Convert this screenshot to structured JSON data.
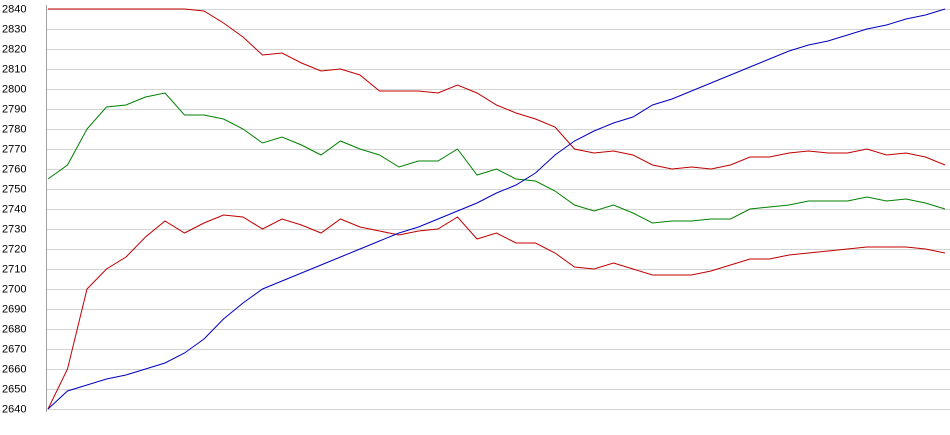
{
  "chart_data": {
    "type": "line",
    "ylim": [
      2640,
      2840
    ],
    "yticks": [
      2640,
      2650,
      2660,
      2670,
      2680,
      2690,
      2700,
      2710,
      2720,
      2730,
      2740,
      2750,
      2760,
      2770,
      2780,
      2790,
      2800,
      2810,
      2820,
      2830,
      2840
    ],
    "grid": true,
    "series": [
      {
        "color": "#c00000",
        "values": [
          2840,
          2840,
          2840,
          2840,
          2840,
          2840,
          2840,
          2840,
          2839,
          2833,
          2826,
          2817,
          2818,
          2813,
          2809,
          2810,
          2807,
          2799,
          2799,
          2799,
          2798,
          2802,
          2798,
          2792,
          2788,
          2785,
          2781,
          2770,
          2768,
          2769,
          2767,
          2762,
          2760,
          2761,
          2760,
          2762,
          2766,
          2766,
          2768,
          2769,
          2768,
          2768,
          2770,
          2767,
          2768,
          2766,
          2762
        ]
      },
      {
        "color": "#008000",
        "values": [
          2755,
          2762,
          2780,
          2791,
          2792,
          2796,
          2798,
          2787,
          2787,
          2785,
          2780,
          2773,
          2776,
          2772,
          2767,
          2774,
          2770,
          2767,
          2761,
          2764,
          2764,
          2770,
          2757,
          2760,
          2755,
          2754,
          2749,
          2742,
          2739,
          2742,
          2738,
          2733,
          2734,
          2734,
          2735,
          2735,
          2740,
          2741,
          2742,
          2744,
          2744,
          2744,
          2746,
          2744,
          2745,
          2743,
          2740
        ]
      },
      {
        "color": "#c00000",
        "values": [
          2640,
          2660,
          2700,
          2710,
          2716,
          2726,
          2734,
          2728,
          2733,
          2737,
          2736,
          2730,
          2735,
          2732,
          2728,
          2735,
          2731,
          2729,
          2727,
          2729,
          2730,
          2736,
          2725,
          2728,
          2723,
          2723,
          2718,
          2711,
          2710,
          2713,
          2710,
          2707,
          2707,
          2707,
          2709,
          2712,
          2715,
          2715,
          2717,
          2718,
          2719,
          2720,
          2721,
          2721,
          2721,
          2720,
          2718
        ]
      },
      {
        "color": "#0000c0",
        "values": [
          2640,
          2649,
          2652,
          2655,
          2657,
          2660,
          2663,
          2668,
          2675,
          2685,
          2693,
          2700,
          2704,
          2708,
          2712,
          2716,
          2720,
          2724,
          2728,
          2731,
          2735,
          2739,
          2743,
          2748,
          2752,
          2758,
          2767,
          2774,
          2779,
          2783,
          2786,
          2792,
          2795,
          2799,
          2803,
          2807,
          2811,
          2815,
          2819,
          2822,
          2824,
          2827,
          2830,
          2832,
          2835,
          2837,
          2840
        ]
      }
    ]
  }
}
